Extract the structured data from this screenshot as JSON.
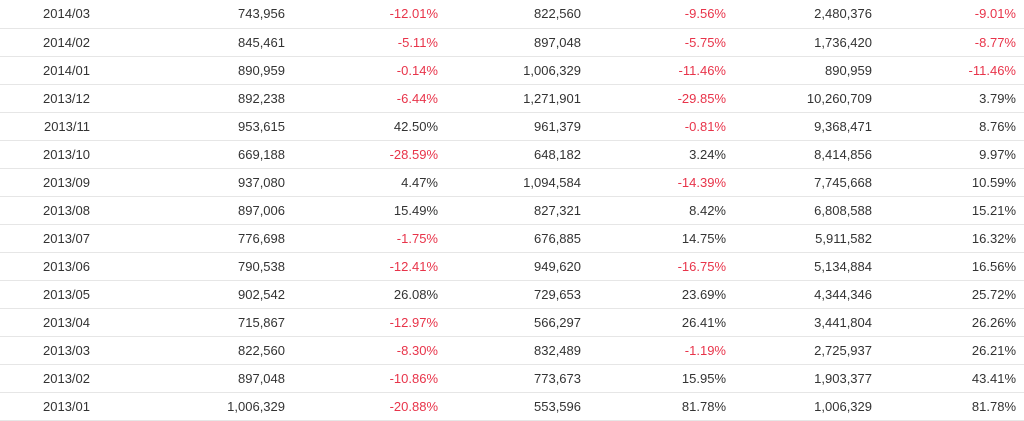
{
  "colors": {
    "negative": "#e8344a",
    "text": "#333333",
    "row_border": "#e6e6e6"
  },
  "rows": [
    {
      "month": "2014/03",
      "v1": "743,956",
      "p1": "-12.01%",
      "v2": "822,560",
      "p2": "-9.56%",
      "v3": "2,480,376",
      "p3": "-9.01%"
    },
    {
      "month": "2014/02",
      "v1": "845,461",
      "p1": "-5.11%",
      "v2": "897,048",
      "p2": "-5.75%",
      "v3": "1,736,420",
      "p3": "-8.77%"
    },
    {
      "month": "2014/01",
      "v1": "890,959",
      "p1": "-0.14%",
      "v2": "1,006,329",
      "p2": "-11.46%",
      "v3": "890,959",
      "p3": "-11.46%"
    },
    {
      "month": "2013/12",
      "v1": "892,238",
      "p1": "-6.44%",
      "v2": "1,271,901",
      "p2": "-29.85%",
      "v3": "10,260,709",
      "p3": "3.79%"
    },
    {
      "month": "2013/11",
      "v1": "953,615",
      "p1": "42.50%",
      "v2": "961,379",
      "p2": "-0.81%",
      "v3": "9,368,471",
      "p3": "8.76%"
    },
    {
      "month": "2013/10",
      "v1": "669,188",
      "p1": "-28.59%",
      "v2": "648,182",
      "p2": "3.24%",
      "v3": "8,414,856",
      "p3": "9.97%"
    },
    {
      "month": "2013/09",
      "v1": "937,080",
      "p1": "4.47%",
      "v2": "1,094,584",
      "p2": "-14.39%",
      "v3": "7,745,668",
      "p3": "10.59%"
    },
    {
      "month": "2013/08",
      "v1": "897,006",
      "p1": "15.49%",
      "v2": "827,321",
      "p2": "8.42%",
      "v3": "6,808,588",
      "p3": "15.21%"
    },
    {
      "month": "2013/07",
      "v1": "776,698",
      "p1": "-1.75%",
      "v2": "676,885",
      "p2": "14.75%",
      "v3": "5,911,582",
      "p3": "16.32%"
    },
    {
      "month": "2013/06",
      "v1": "790,538",
      "p1": "-12.41%",
      "v2": "949,620",
      "p2": "-16.75%",
      "v3": "5,134,884",
      "p3": "16.56%"
    },
    {
      "month": "2013/05",
      "v1": "902,542",
      "p1": "26.08%",
      "v2": "729,653",
      "p2": "23.69%",
      "v3": "4,344,346",
      "p3": "25.72%"
    },
    {
      "month": "2013/04",
      "v1": "715,867",
      "p1": "-12.97%",
      "v2": "566,297",
      "p2": "26.41%",
      "v3": "3,441,804",
      "p3": "26.26%"
    },
    {
      "month": "2013/03",
      "v1": "822,560",
      "p1": "-8.30%",
      "v2": "832,489",
      "p2": "-1.19%",
      "v3": "2,725,937",
      "p3": "26.21%"
    },
    {
      "month": "2013/02",
      "v1": "897,048",
      "p1": "-10.86%",
      "v2": "773,673",
      "p2": "15.95%",
      "v3": "1,903,377",
      "p3": "43.41%"
    },
    {
      "month": "2013/01",
      "v1": "1,006,329",
      "p1": "-20.88%",
      "v2": "553,596",
      "p2": "81.78%",
      "v3": "1,006,329",
      "p3": "81.78%"
    }
  ]
}
